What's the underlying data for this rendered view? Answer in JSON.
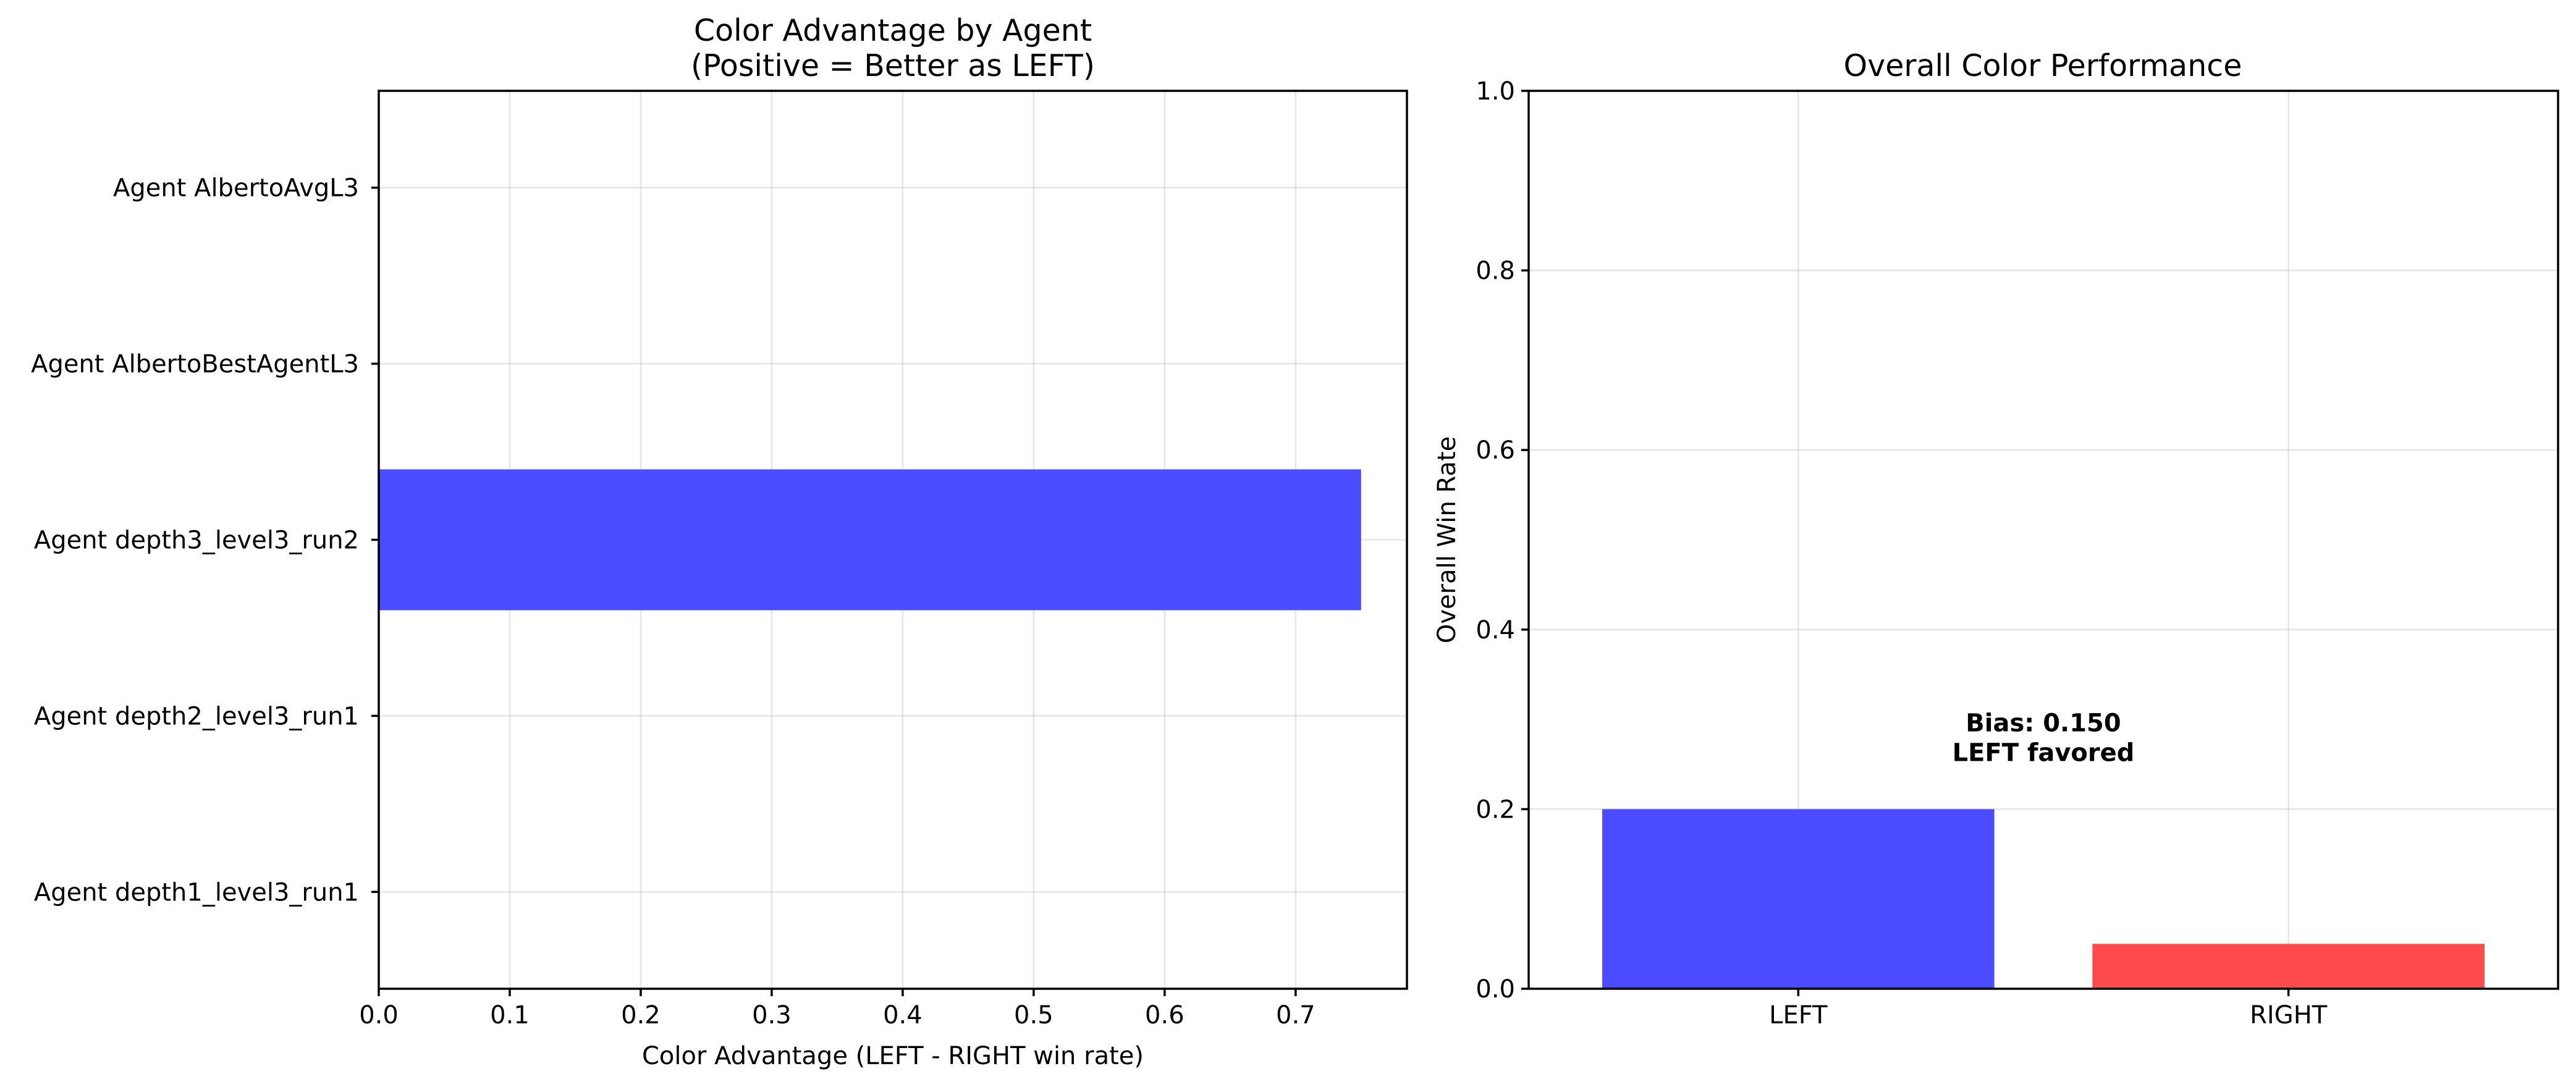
{
  "chart_data": [
    {
      "type": "bar",
      "orientation": "horizontal",
      "title": "Color Advantage by Agent\n(Positive = Better as LEFT)",
      "xlabel": "Color Advantage (LEFT - RIGHT win rate)",
      "ylabel": "",
      "categories": [
        "Agent depth1_level3_run1",
        "Agent depth2_level3_run1",
        "Agent depth3_level3_run2",
        "Agent AlbertoBestAgentL3",
        "Agent AlbertoAvgL3"
      ],
      "values": [
        0.0,
        0.0,
        0.75,
        0.0,
        0.0
      ],
      "bar_colors": [
        "#4b4bff",
        "#4b4bff",
        "#4b4bff",
        "#4b4bff",
        "#4b4bff"
      ],
      "xlim": [
        0.0,
        0.785
      ],
      "xticks": [
        "0.0",
        "0.1",
        "0.2",
        "0.3",
        "0.4",
        "0.5",
        "0.6",
        "0.7"
      ],
      "xtick_values": [
        0.0,
        0.1,
        0.2,
        0.3,
        0.4,
        0.5,
        0.6,
        0.7
      ],
      "zero_line": "dashed",
      "grid": true
    },
    {
      "type": "bar",
      "title": "Overall Color Performance",
      "xlabel": "",
      "ylabel": "Overall Win Rate",
      "categories": [
        "LEFT",
        "RIGHT"
      ],
      "values": [
        0.2,
        0.05
      ],
      "bar_colors": [
        "#4b4bff",
        "#ff4b4b"
      ],
      "ylim": [
        0.0,
        1.0
      ],
      "yticks": [
        "0.0",
        "0.2",
        "0.4",
        "0.6",
        "0.8",
        "1.0"
      ],
      "ytick_values": [
        0.0,
        0.2,
        0.4,
        0.6,
        0.8,
        1.0
      ],
      "annotation": [
        "Bias: 0.150",
        "LEFT favored"
      ],
      "annotation_value": 0.27,
      "grid": true
    }
  ]
}
